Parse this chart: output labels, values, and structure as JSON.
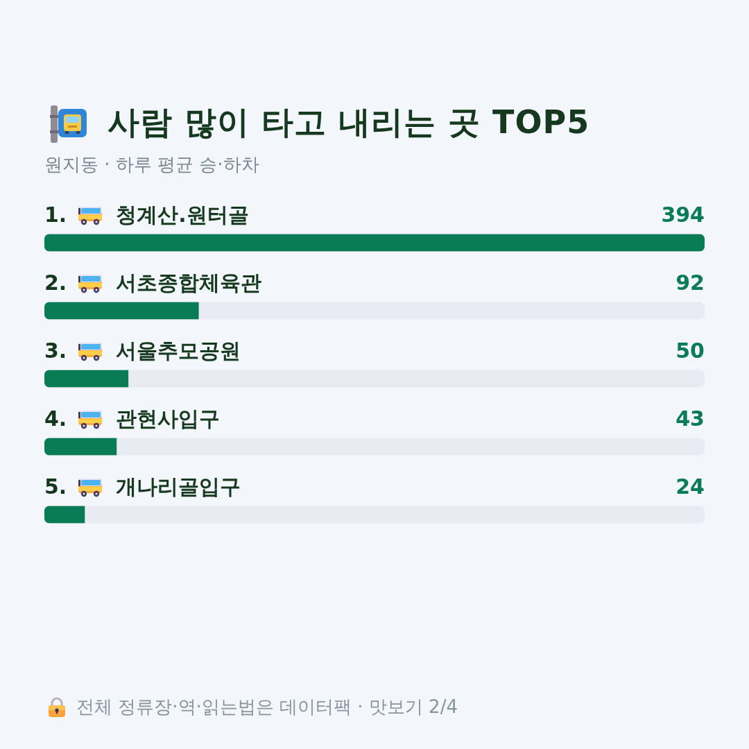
{
  "chart_data": {
    "type": "bar",
    "title": "사람 많이 타고 내리는 곳 TOP5",
    "subtitle": "원지동 · 하루 평균 승·하차",
    "categories": [
      "1. 청계산.원터골",
      "2. 서초종합체육관",
      "3. 서울추모공원",
      "4. 관현사입구",
      "5. 개나리골입구"
    ],
    "values": [
      394,
      92,
      50,
      43,
      24
    ],
    "color": "#0a7c55",
    "orientation": "horizontal",
    "xlim": [
      0,
      394
    ],
    "data_labels": true,
    "tick_labels": "y",
    "annotations": [
      "전체 정류장·역·읽는법은 데이터팩 · 맛보기 2/4"
    ]
  }
}
